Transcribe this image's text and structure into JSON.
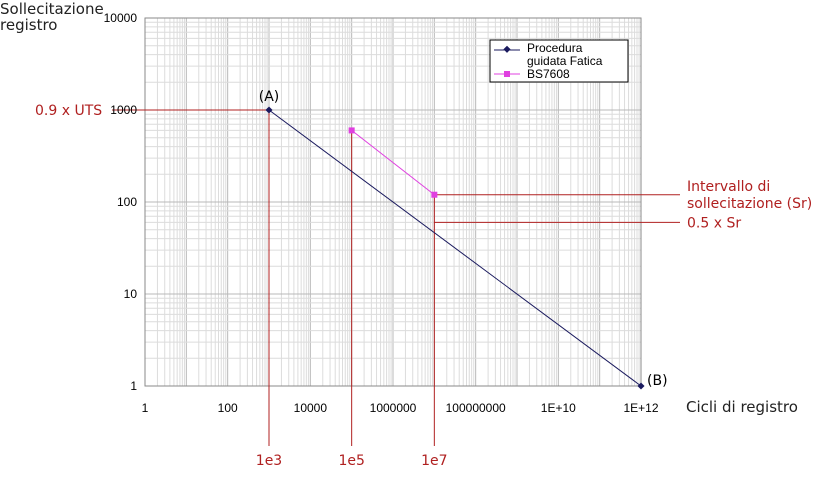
{
  "chart_data": {
    "type": "line",
    "xscale": "log",
    "yscale": "log",
    "xlim": [
      1,
      1000000000000
    ],
    "ylim": [
      1,
      10000
    ],
    "grid": true,
    "legend_position": "top-right",
    "ylabel_lines": [
      "Sollecitazione",
      "registro"
    ],
    "xlabel": "Cicli di registro",
    "xticks": [
      {
        "v": 1,
        "label": "1"
      },
      {
        "v": 100,
        "label": "100"
      },
      {
        "v": 10000,
        "label": "10000"
      },
      {
        "v": 1000000,
        "label": "1000000"
      },
      {
        "v": 100000000,
        "label": "100000000"
      },
      {
        "v": 10000000000,
        "label": "1E+10"
      },
      {
        "v": 1000000000000,
        "label": "1E+12"
      }
    ],
    "yticks": [
      {
        "v": 1,
        "label": "1"
      },
      {
        "v": 10,
        "label": "10"
      },
      {
        "v": 100,
        "label": "100"
      },
      {
        "v": 1000,
        "label": "1000"
      },
      {
        "v": 10000,
        "label": "10000"
      }
    ],
    "series": [
      {
        "name": "Procedura guidata Fatica",
        "legend_lines": [
          "Procedura",
          "guidata Fatica"
        ],
        "color": "#1a1a5e",
        "marker": "diamond",
        "x": [
          1000,
          1000000000000
        ],
        "y": [
          1000,
          1
        ]
      },
      {
        "name": "BS7608",
        "legend_lines": [
          "BS7608"
        ],
        "color": "#e040e0",
        "marker": "square",
        "x": [
          100000,
          10000000
        ],
        "y": [
          600,
          120
        ]
      }
    ],
    "point_labels": [
      {
        "text": "(A)",
        "x": 1000,
        "y": 1000,
        "pos": "above"
      },
      {
        "text": "(B)",
        "x": 1000000000000,
        "y": 1,
        "pos": "right"
      }
    ],
    "reference_lines": {
      "color": "#b02020",
      "vertical": [
        {
          "x": 1000,
          "from_y": 1000,
          "label": "1e3"
        },
        {
          "x": 100000,
          "from_y": 600,
          "label": "1e5"
        },
        {
          "x": 10000000,
          "from_y": 120,
          "label": "1e7"
        }
      ],
      "horizontal": [
        {
          "y": 1000,
          "from_x": 1000,
          "side": "left",
          "label_lines": [
            "0.9 x UTS"
          ]
        },
        {
          "y": 120,
          "from_x": 10000000,
          "side": "right",
          "label_lines": [
            "Intervallo di",
            "sollecitazione (Sr)"
          ]
        },
        {
          "y": 60,
          "from_x": 10000000,
          "side": "right",
          "label_lines": [
            "0.5 x Sr"
          ]
        }
      ]
    }
  }
}
